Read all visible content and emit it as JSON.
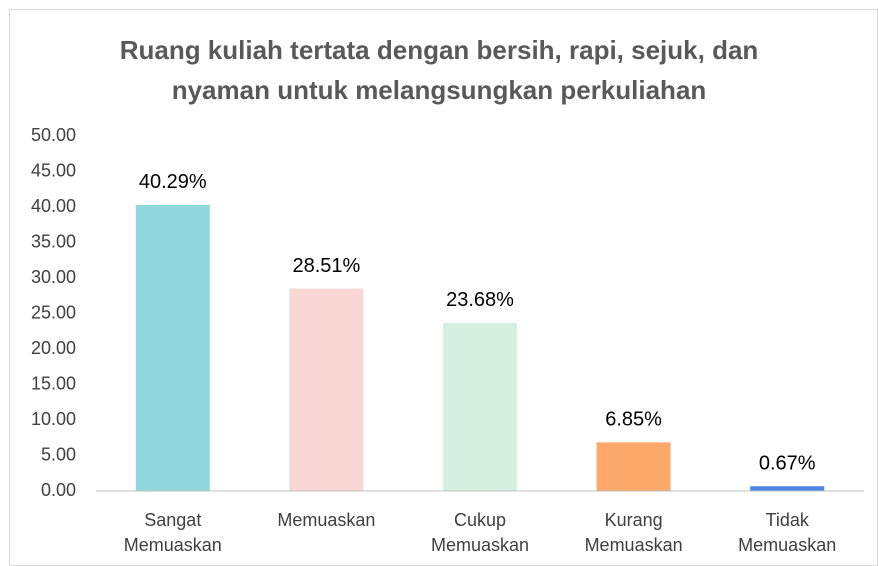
{
  "chart_data": {
    "type": "bar",
    "title": "Ruang kuliah tertata dengan bersih, rapi, sejuk, dan nyaman untuk melangsungkan perkuliahan",
    "categories": [
      "Sangat Memuaskan",
      "Memuaskan",
      "Cukup Memuaskan",
      "Kurang Memuaskan",
      "Tidak Memuaskan"
    ],
    "values": [
      40.29,
      28.51,
      23.68,
      6.85,
      0.67
    ],
    "value_labels": [
      "40.29%",
      "28.51%",
      "23.68%",
      "6.85%",
      "0.67%"
    ],
    "colors": [
      "#8fd7dc",
      "#f8d7d5",
      "#d5efe0",
      "#fba86a",
      "#4a86e8"
    ],
    "ylim": [
      0,
      50
    ],
    "yticks": [
      {
        "value": 0,
        "label": "0.00"
      },
      {
        "value": 5,
        "label": "5.00"
      },
      {
        "value": 10,
        "label": "10.00"
      },
      {
        "value": 15,
        "label": "15.00"
      },
      {
        "value": 20,
        "label": "20.00"
      },
      {
        "value": 25,
        "label": "25.00"
      },
      {
        "value": 30,
        "label": "30.00"
      },
      {
        "value": 35,
        "label": "35.00"
      },
      {
        "value": 40,
        "label": "40.00"
      },
      {
        "value": 45,
        "label": "45.00"
      },
      {
        "value": 50,
        "label": "50.00"
      }
    ],
    "grid": false
  }
}
